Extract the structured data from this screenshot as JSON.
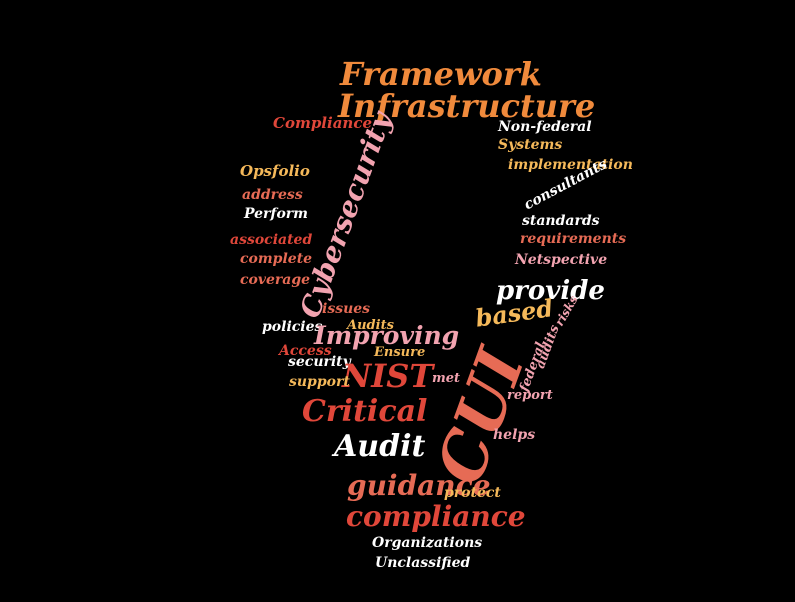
{
  "colors": {
    "background": "#000000",
    "orange": "#f08a3c",
    "red": "#e0473a",
    "coral": "#e66b55",
    "pink": "#f2a3b0",
    "yellow": "#f5b95a",
    "white": "#ffffff"
  },
  "words": [
    {
      "text": "Framework",
      "color": "orange"
    },
    {
      "text": "Infrastructure",
      "color": "orange"
    },
    {
      "text": "Compliance",
      "color": "red"
    },
    {
      "text": "Non-federal",
      "color": "white"
    },
    {
      "text": "Systems",
      "color": "yellow"
    },
    {
      "text": "implementation",
      "color": "yellow"
    },
    {
      "text": "Opsfolio",
      "color": "yellow"
    },
    {
      "text": "address",
      "color": "coral"
    },
    {
      "text": "Perform",
      "color": "white"
    },
    {
      "text": "consultants",
      "color": "white"
    },
    {
      "text": "standards",
      "color": "white"
    },
    {
      "text": "requirements",
      "color": "coral"
    },
    {
      "text": "associated",
      "color": "red"
    },
    {
      "text": "complete",
      "color": "coral"
    },
    {
      "text": "Netspective",
      "color": "pink"
    },
    {
      "text": "coverage",
      "color": "coral"
    },
    {
      "text": "Cybersecurity",
      "color": "pink"
    },
    {
      "text": "provide",
      "color": "white"
    },
    {
      "text": "issues",
      "color": "coral"
    },
    {
      "text": "based",
      "color": "yellow"
    },
    {
      "text": "risks",
      "color": "pink"
    },
    {
      "text": "policies",
      "color": "white"
    },
    {
      "text": "Audits",
      "color": "yellow"
    },
    {
      "text": "Improving",
      "color": "pink"
    },
    {
      "text": "Access",
      "color": "red"
    },
    {
      "text": "Ensure",
      "color": "yellow"
    },
    {
      "text": "security",
      "color": "white"
    },
    {
      "text": "audits",
      "color": "pink"
    },
    {
      "text": "federal",
      "color": "pink"
    },
    {
      "text": "NIST",
      "color": "red"
    },
    {
      "text": "met",
      "color": "pink"
    },
    {
      "text": "support",
      "color": "yellow"
    },
    {
      "text": "report",
      "color": "pink"
    },
    {
      "text": "Critical",
      "color": "red"
    },
    {
      "text": "CUI",
      "color": "coral"
    },
    {
      "text": "helps",
      "color": "pink"
    },
    {
      "text": "Audit",
      "color": "white"
    },
    {
      "text": "guidance",
      "color": "coral"
    },
    {
      "text": "protect",
      "color": "yellow"
    },
    {
      "text": "compliance",
      "color": "red"
    },
    {
      "text": "Organizations",
      "color": "white"
    },
    {
      "text": "Unclassified",
      "color": "white"
    }
  ]
}
